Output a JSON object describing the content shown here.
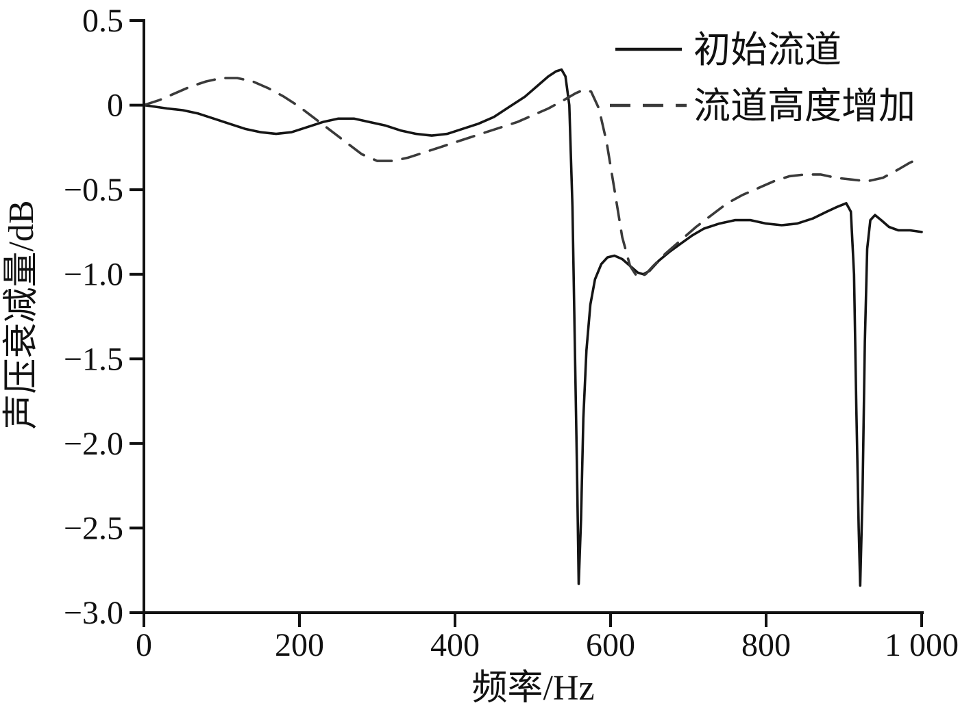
{
  "chart_data": {
    "type": "line",
    "title": "",
    "xlabel": "频率/Hz",
    "ylabel": "声压衰减量/dB",
    "xlim": [
      0,
      1000
    ],
    "ylim": [
      -3.0,
      0.5
    ],
    "grid": false,
    "legend_position": "top-right",
    "axis_color": "#111111",
    "xticks": [
      {
        "v": 0,
        "label": "0"
      },
      {
        "v": 200,
        "label": "200"
      },
      {
        "v": 400,
        "label": "400"
      },
      {
        "v": 600,
        "label": "600"
      },
      {
        "v": 800,
        "label": "800"
      },
      {
        "v": 1000,
        "label": "1 000"
      }
    ],
    "yticks": [
      {
        "v": 0.5,
        "label": "0.5"
      },
      {
        "v": 0,
        "label": "0"
      },
      {
        "v": -0.5,
        "label": "−0.5"
      },
      {
        "v": -1.0,
        "label": "−1.0"
      },
      {
        "v": -1.5,
        "label": "−1.5"
      },
      {
        "v": -2.0,
        "label": "−2.0"
      },
      {
        "v": -2.5,
        "label": "−2.5"
      },
      {
        "v": -3.0,
        "label": "−3.0"
      }
    ],
    "series": [
      {
        "name": "初始流道",
        "style": "solid",
        "color": "#151515",
        "points": [
          [
            0,
            0
          ],
          [
            15,
            -0.01
          ],
          [
            30,
            -0.02
          ],
          [
            50,
            -0.03
          ],
          [
            70,
            -0.05
          ],
          [
            90,
            -0.08
          ],
          [
            110,
            -0.11
          ],
          [
            130,
            -0.14
          ],
          [
            150,
            -0.16
          ],
          [
            170,
            -0.17
          ],
          [
            190,
            -0.16
          ],
          [
            210,
            -0.13
          ],
          [
            230,
            -0.1
          ],
          [
            250,
            -0.08
          ],
          [
            270,
            -0.08
          ],
          [
            290,
            -0.1
          ],
          [
            310,
            -0.12
          ],
          [
            330,
            -0.15
          ],
          [
            350,
            -0.17
          ],
          [
            370,
            -0.18
          ],
          [
            390,
            -0.17
          ],
          [
            410,
            -0.14
          ],
          [
            430,
            -0.11
          ],
          [
            450,
            -0.07
          ],
          [
            470,
            -0.01
          ],
          [
            490,
            0.05
          ],
          [
            505,
            0.11
          ],
          [
            520,
            0.17
          ],
          [
            530,
            0.2
          ],
          [
            537,
            0.21
          ],
          [
            542,
            0.17
          ],
          [
            547,
            0.0
          ],
          [
            551,
            -0.6
          ],
          [
            554,
            -1.4
          ],
          [
            557,
            -2.2
          ],
          [
            559,
            -2.83
          ],
          [
            562,
            -2.45
          ],
          [
            565,
            -1.85
          ],
          [
            569,
            -1.45
          ],
          [
            574,
            -1.18
          ],
          [
            580,
            -1.03
          ],
          [
            588,
            -0.94
          ],
          [
            596,
            -0.9
          ],
          [
            605,
            -0.89
          ],
          [
            615,
            -0.91
          ],
          [
            625,
            -0.95
          ],
          [
            635,
            -0.99
          ],
          [
            642,
            -1.0
          ],
          [
            650,
            -0.98
          ],
          [
            662,
            -0.92
          ],
          [
            675,
            -0.87
          ],
          [
            690,
            -0.82
          ],
          [
            705,
            -0.77
          ],
          [
            720,
            -0.73
          ],
          [
            740,
            -0.7
          ],
          [
            760,
            -0.68
          ],
          [
            780,
            -0.68
          ],
          [
            800,
            -0.7
          ],
          [
            820,
            -0.71
          ],
          [
            840,
            -0.7
          ],
          [
            860,
            -0.67
          ],
          [
            878,
            -0.63
          ],
          [
            892,
            -0.6
          ],
          [
            903,
            -0.58
          ],
          [
            909,
            -0.63
          ],
          [
            913,
            -1.0
          ],
          [
            916,
            -1.8
          ],
          [
            919,
            -2.5
          ],
          [
            921,
            -2.84
          ],
          [
            924,
            -2.3
          ],
          [
            927,
            -1.4
          ],
          [
            930,
            -0.85
          ],
          [
            934,
            -0.68
          ],
          [
            940,
            -0.65
          ],
          [
            948,
            -0.68
          ],
          [
            958,
            -0.72
          ],
          [
            970,
            -0.74
          ],
          [
            985,
            -0.74
          ],
          [
            1000,
            -0.75
          ]
        ]
      },
      {
        "name": "流道高度增加",
        "style": "dashed",
        "color": "#3a3a3a",
        "points": [
          [
            0,
            0.0
          ],
          [
            20,
            0.03
          ],
          [
            40,
            0.07
          ],
          [
            60,
            0.11
          ],
          [
            80,
            0.14
          ],
          [
            100,
            0.16
          ],
          [
            120,
            0.16
          ],
          [
            140,
            0.14
          ],
          [
            160,
            0.1
          ],
          [
            180,
            0.05
          ],
          [
            200,
            -0.01
          ],
          [
            220,
            -0.08
          ],
          [
            240,
            -0.15
          ],
          [
            260,
            -0.22
          ],
          [
            280,
            -0.29
          ],
          [
            300,
            -0.33
          ],
          [
            320,
            -0.33
          ],
          [
            340,
            -0.31
          ],
          [
            360,
            -0.28
          ],
          [
            380,
            -0.25
          ],
          [
            400,
            -0.22
          ],
          [
            420,
            -0.19
          ],
          [
            440,
            -0.16
          ],
          [
            460,
            -0.13
          ],
          [
            480,
            -0.1
          ],
          [
            500,
            -0.06
          ],
          [
            520,
            -0.02
          ],
          [
            540,
            0.03
          ],
          [
            555,
            0.07
          ],
          [
            565,
            0.09
          ],
          [
            575,
            0.08
          ],
          [
            585,
            -0.02
          ],
          [
            595,
            -0.22
          ],
          [
            605,
            -0.5
          ],
          [
            615,
            -0.78
          ],
          [
            625,
            -0.95
          ],
          [
            635,
            -1.02
          ],
          [
            645,
            -1.0
          ],
          [
            655,
            -0.95
          ],
          [
            670,
            -0.88
          ],
          [
            690,
            -0.8
          ],
          [
            710,
            -0.72
          ],
          [
            730,
            -0.65
          ],
          [
            750,
            -0.58
          ],
          [
            770,
            -0.53
          ],
          [
            790,
            -0.49
          ],
          [
            810,
            -0.45
          ],
          [
            830,
            -0.42
          ],
          [
            850,
            -0.41
          ],
          [
            870,
            -0.41
          ],
          [
            890,
            -0.43
          ],
          [
            910,
            -0.44
          ],
          [
            930,
            -0.45
          ],
          [
            950,
            -0.43
          ],
          [
            970,
            -0.38
          ],
          [
            985,
            -0.34
          ],
          [
            1000,
            -0.31
          ]
        ]
      }
    ]
  }
}
